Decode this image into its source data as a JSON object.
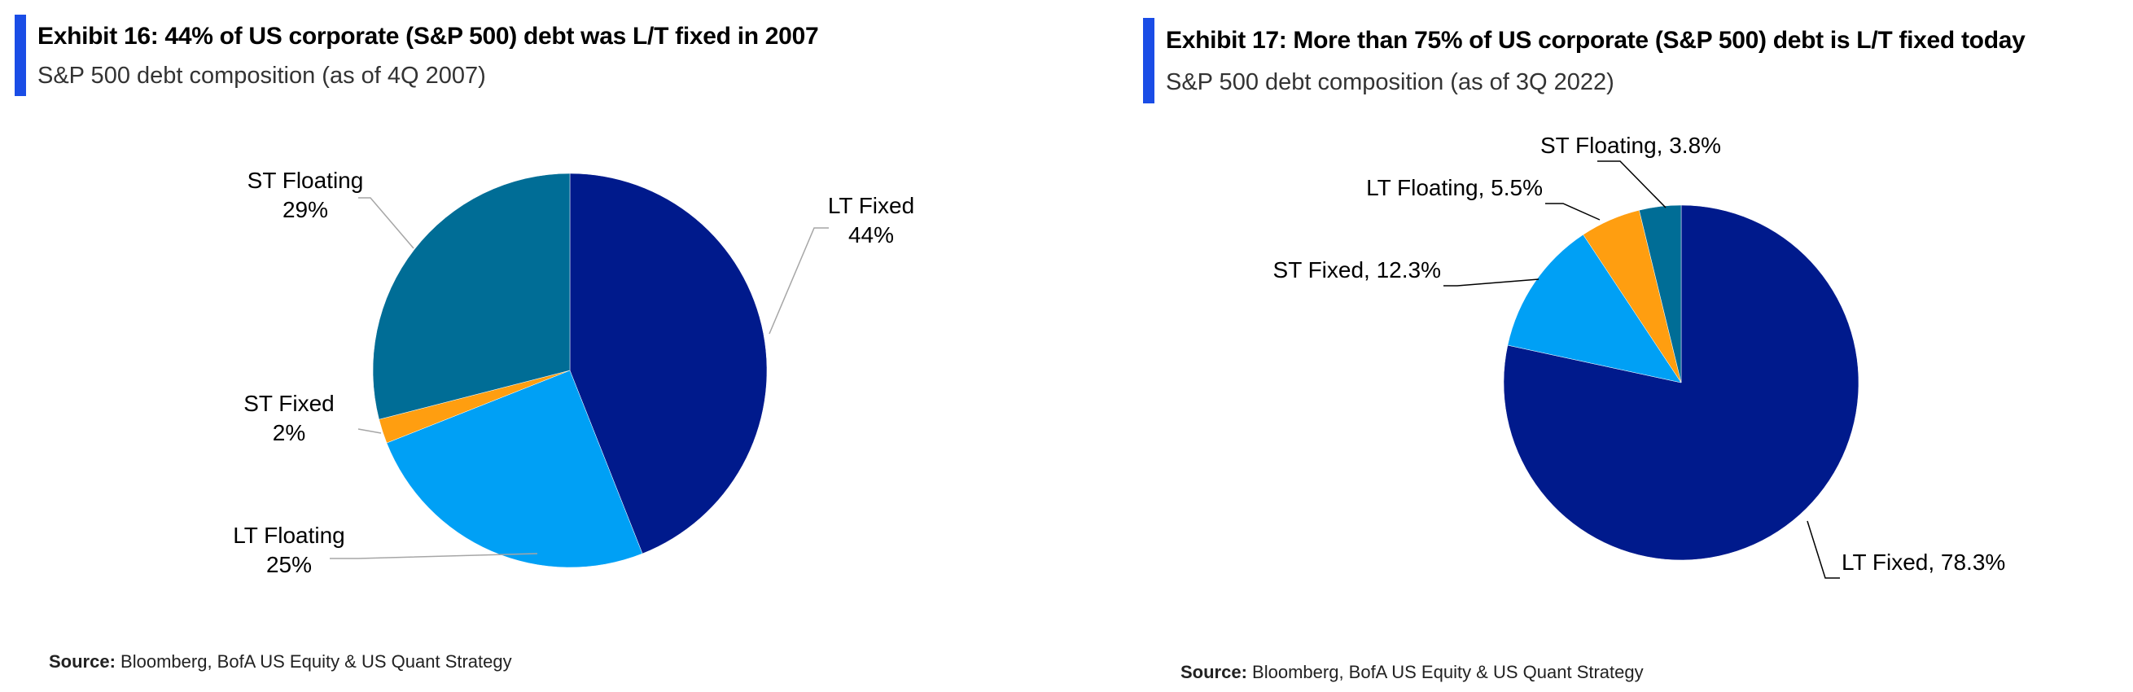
{
  "exhibits": [
    {
      "title": "Exhibit 16: 44% of US corporate (S&P 500) debt was L/T fixed in 2007",
      "subtitle": "S&P 500 debt composition (as of 4Q 2007)",
      "source_label": "Source:",
      "source_text": "Bloomberg, BofA US Equity & US Quant Strategy"
    },
    {
      "title": "Exhibit 17: More than 75% of US corporate (S&P 500) debt is L/T fixed today",
      "subtitle": "S&P 500 debt composition (as of 3Q 2022)",
      "source_label": "Source:",
      "source_text": "Bloomberg, BofA US Equity & US Quant Strategy"
    }
  ],
  "chart_data": [
    {
      "type": "pie",
      "title": "Exhibit 16: 44% of US corporate (S&P 500) debt was L/T fixed in 2007",
      "subtitle": "S&P 500 debt composition (as of 4Q 2007)",
      "legend": "none",
      "slices": [
        {
          "name": "LT Fixed",
          "value": 44,
          "color": "#001a8c",
          "label_lines": [
            "LT Fixed",
            "44%"
          ]
        },
        {
          "name": "LT Floating",
          "value": 25,
          "color": "#00a0f5",
          "label_lines": [
            "LT Floating",
            "25%"
          ]
        },
        {
          "name": "ST Fixed",
          "value": 2,
          "color": "#ff9e10",
          "label_lines": [
            "ST Fixed",
            "2%"
          ]
        },
        {
          "name": "ST Floating",
          "value": 29,
          "color": "#006d96",
          "label_lines": [
            "ST Floating",
            "29%"
          ]
        }
      ]
    },
    {
      "type": "pie",
      "title": "Exhibit 17: More than 75% of US corporate (S&P 500) debt is L/T fixed today",
      "subtitle": "S&P 500 debt composition (as of 3Q 2022)",
      "legend": "none",
      "slices": [
        {
          "name": "LT Fixed",
          "value": 78.3,
          "color": "#001a8c",
          "label_lines": [
            "LT Fixed, 78.3%"
          ]
        },
        {
          "name": "ST Fixed",
          "value": 12.3,
          "color": "#00a0f5",
          "label_lines": [
            "ST Fixed, 12.3%"
          ]
        },
        {
          "name": "LT Floating",
          "value": 5.5,
          "color": "#ff9e10",
          "label_lines": [
            "LT Floating, 5.5%"
          ]
        },
        {
          "name": "ST Floating",
          "value": 3.8,
          "color": "#006d96",
          "label_lines": [
            "ST Floating, 3.8%"
          ]
        }
      ]
    }
  ]
}
